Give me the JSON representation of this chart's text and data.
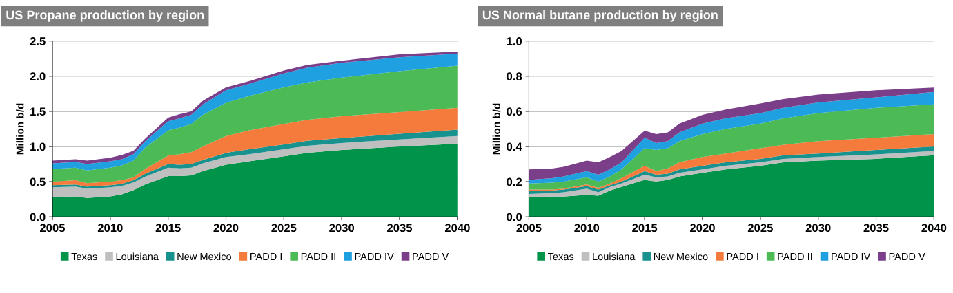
{
  "chart_data": [
    {
      "type": "area",
      "stacked": true,
      "title": "US Propane production by region",
      "ylabel": "Million b/d",
      "x": [
        2005,
        2007,
        2008,
        2010,
        2011,
        2012,
        2013,
        2015,
        2016,
        2017,
        2018,
        2020,
        2022,
        2025,
        2027,
        2030,
        2035,
        2040
      ],
      "xlim": [
        2005,
        2040
      ],
      "xticks": [
        2005,
        2010,
        2015,
        2020,
        2025,
        2030,
        2035,
        2040
      ],
      "ylim": [
        0,
        2.5
      ],
      "yticks": [
        {
          "value": 0,
          "label": "0.0"
        },
        {
          "value": 0.5,
          "label": "0.5"
        },
        {
          "value": 1,
          "label": "1.0"
        },
        {
          "value": 1.5,
          "label": "1.5"
        },
        {
          "value": 2,
          "label": "2.0"
        },
        {
          "value": 2.5,
          "label": "2.5"
        }
      ],
      "grid": "y",
      "legend": "bottom",
      "series": [
        {
          "name": "Texas",
          "color": "#00934a",
          "values": [
            0.28,
            0.29,
            0.27,
            0.29,
            0.32,
            0.38,
            0.46,
            0.58,
            0.58,
            0.59,
            0.65,
            0.74,
            0.79,
            0.86,
            0.91,
            0.95,
            1.0,
            1.04
          ]
        },
        {
          "name": "Louisiana",
          "color": "#bfbfbf",
          "values": [
            0.14,
            0.14,
            0.13,
            0.13,
            0.12,
            0.11,
            0.11,
            0.12,
            0.11,
            0.11,
            0.11,
            0.11,
            0.1,
            0.1,
            0.1,
            0.1,
            0.1,
            0.11
          ]
        },
        {
          "name": "New Mexico",
          "color": "#17928f",
          "values": [
            0.03,
            0.03,
            0.03,
            0.03,
            0.03,
            0.03,
            0.04,
            0.05,
            0.05,
            0.05,
            0.05,
            0.06,
            0.07,
            0.07,
            0.07,
            0.07,
            0.08,
            0.09
          ]
        },
        {
          "name": "PADD I",
          "color": "#f47b3c",
          "values": [
            0.05,
            0.06,
            0.05,
            0.05,
            0.05,
            0.04,
            0.07,
            0.12,
            0.15,
            0.17,
            0.19,
            0.24,
            0.27,
            0.29,
            0.3,
            0.31,
            0.31,
            0.31
          ]
        },
        {
          "name": "PADD II",
          "color": "#4cbb55",
          "values": [
            0.18,
            0.18,
            0.18,
            0.2,
            0.21,
            0.24,
            0.3,
            0.36,
            0.38,
            0.4,
            0.45,
            0.47,
            0.49,
            0.52,
            0.53,
            0.55,
            0.58,
            0.6
          ]
        },
        {
          "name": "PADD IV",
          "color": "#1fa0e0",
          "values": [
            0.08,
            0.08,
            0.09,
            0.09,
            0.09,
            0.09,
            0.09,
            0.13,
            0.13,
            0.13,
            0.15,
            0.18,
            0.17,
            0.2,
            0.21,
            0.21,
            0.2,
            0.17
          ]
        },
        {
          "name": "PADD V",
          "color": "#7b3f8a",
          "values": [
            0.04,
            0.04,
            0.05,
            0.05,
            0.06,
            0.05,
            0.04,
            0.05,
            0.06,
            0.05,
            0.05,
            0.04,
            0.04,
            0.04,
            0.04,
            0.03,
            0.04,
            0.03
          ]
        }
      ]
    },
    {
      "type": "area",
      "stacked": true,
      "title": "US Normal butane production by region",
      "ylabel": "Million b/d",
      "x": [
        2005,
        2007,
        2008,
        2010,
        2011,
        2012,
        2013,
        2015,
        2016,
        2017,
        2018,
        2020,
        2022,
        2025,
        2027,
        2030,
        2035,
        2040
      ],
      "xlim": [
        2005,
        2040
      ],
      "xticks": [
        2005,
        2010,
        2015,
        2020,
        2025,
        2030,
        2035,
        2040
      ],
      "ylim": [
        0,
        1
      ],
      "yticks": [
        {
          "value": 0,
          "label": "0.0"
        },
        {
          "value": 0.2,
          "label": "0.2"
        },
        {
          "value": 0.4,
          "label": "0.4"
        },
        {
          "value": 0.6,
          "label": "0.6"
        },
        {
          "value": 0.8,
          "label": "0.8"
        },
        {
          "value": 1,
          "label": "1.0"
        }
      ],
      "grid": "y",
      "legend": "bottom",
      "series": [
        {
          "name": "Texas",
          "color": "#00934a",
          "values": [
            0.11,
            0.115,
            0.115,
            0.125,
            0.12,
            0.15,
            0.17,
            0.21,
            0.2,
            0.21,
            0.23,
            0.25,
            0.27,
            0.29,
            0.31,
            0.32,
            0.33,
            0.35
          ]
        },
        {
          "name": "Louisiana",
          "color": "#bfbfbf",
          "values": [
            0.02,
            0.02,
            0.025,
            0.035,
            0.02,
            0.02,
            0.02,
            0.03,
            0.025,
            0.02,
            0.02,
            0.02,
            0.02,
            0.02,
            0.02,
            0.02,
            0.025,
            0.025
          ]
        },
        {
          "name": "New Mexico",
          "color": "#17928f",
          "values": [
            0.02,
            0.015,
            0.015,
            0.015,
            0.015,
            0.01,
            0.01,
            0.02,
            0.015,
            0.015,
            0.02,
            0.02,
            0.02,
            0.02,
            0.02,
            0.02,
            0.025,
            0.025
          ]
        },
        {
          "name": "PADD I",
          "color": "#f47b3c",
          "values": [
            0.005,
            0.005,
            0.005,
            0.01,
            0.01,
            0.01,
            0.02,
            0.03,
            0.02,
            0.03,
            0.04,
            0.05,
            0.05,
            0.06,
            0.06,
            0.07,
            0.07,
            0.07
          ]
        },
        {
          "name": "PADD II",
          "color": "#4cbb55",
          "values": [
            0.035,
            0.04,
            0.04,
            0.04,
            0.035,
            0.04,
            0.05,
            0.1,
            0.12,
            0.115,
            0.12,
            0.13,
            0.14,
            0.14,
            0.15,
            0.16,
            0.17,
            0.17
          ]
        },
        {
          "name": "PADD IV",
          "color": "#1fa0e0",
          "values": [
            0.02,
            0.025,
            0.03,
            0.035,
            0.04,
            0.04,
            0.04,
            0.06,
            0.04,
            0.04,
            0.05,
            0.06,
            0.06,
            0.06,
            0.06,
            0.06,
            0.06,
            0.07
          ]
        },
        {
          "name": "PADD V",
          "color": "#7b3f8a",
          "values": [
            0.06,
            0.055,
            0.055,
            0.06,
            0.07,
            0.07,
            0.065,
            0.04,
            0.05,
            0.05,
            0.05,
            0.05,
            0.05,
            0.055,
            0.05,
            0.045,
            0.04,
            0.025
          ]
        }
      ]
    }
  ]
}
